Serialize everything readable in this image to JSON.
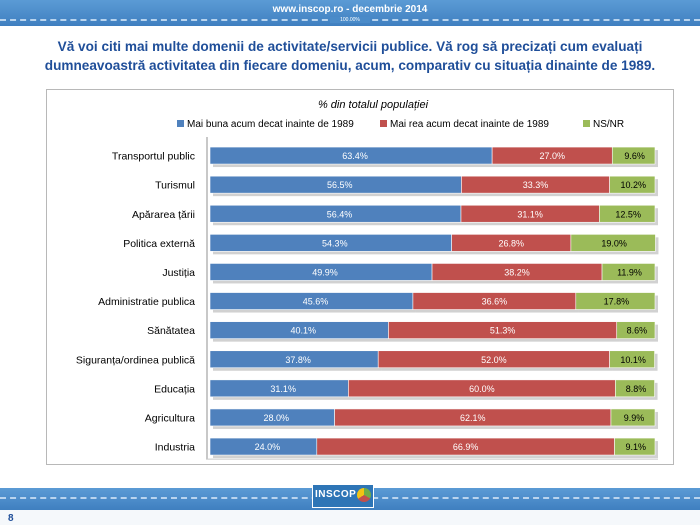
{
  "header": {
    "site": "www.inscop.ro  -  decembrie 2014",
    "percent_label": "100.00%"
  },
  "question": {
    "line1": "Vă voi citi mai multe domenii de activitate/servicii publice. Vă rog să precizați cum evaluați",
    "line2": "dumneavoastră activitatea din fiecare domeniu, acum, comparativ cu situația dinainte de 1989."
  },
  "colors": {
    "better": "#4f81bd",
    "worse": "#c0504d",
    "nsnr": "#9bbb59",
    "band": "#4a8bc9"
  },
  "chart_data": {
    "type": "bar",
    "orientation": "horizontal",
    "stacked": true,
    "title": "% din totalul populației",
    "categories": [
      "Transportul public",
      "Turismul",
      "Apărarea țării",
      "Politica externă",
      "Justiția",
      "Administratie publica",
      "Sănătatea",
      "Siguranța/ordinea publică",
      "Educația",
      "Agricultura",
      "Industria"
    ],
    "series": [
      {
        "name": "Mai buna acum decat inainte de 1989",
        "labels": [
          "63.4%",
          "56.5%",
          "56.4%",
          "54.3%",
          "49.9%",
          "45.6%",
          "40.1%",
          "37.8%",
          "31.1%",
          "28.0%",
          "24.0%"
        ],
        "values": [
          63.4,
          56.5,
          56.4,
          54.3,
          49.9,
          45.6,
          40.1,
          37.8,
          31.1,
          28.0,
          24.0
        ]
      },
      {
        "name": "Mai rea acum decat inainte de 1989",
        "labels": [
          "27.0%",
          "33.3%",
          "31.1%",
          "26.8%",
          "38.2%",
          "36.6%",
          "51.3%",
          "52.0%",
          "60.0%",
          "62.1%",
          "66.9%"
        ],
        "values": [
          27.0,
          33.3,
          31.1,
          26.8,
          38.2,
          36.6,
          51.3,
          52.0,
          60.0,
          62.1,
          66.9
        ]
      },
      {
        "name": "NS/NR",
        "labels": [
          "9.6%",
          "10.2%",
          "12.5%",
          "19.0%",
          "11.9%",
          "17.8%",
          "8.6%",
          "10.1%",
          "8.8%",
          "9.9%",
          "9.1%"
        ],
        "values": [
          9.6,
          10.2,
          12.5,
          19.0,
          11.9,
          17.8,
          8.6,
          10.1,
          8.8,
          9.9,
          9.1
        ]
      }
    ],
    "xlim": [
      0,
      100
    ],
    "legend": "top",
    "grid": false
  },
  "footer": {
    "logo": "INSCOP",
    "page_number": "8"
  }
}
